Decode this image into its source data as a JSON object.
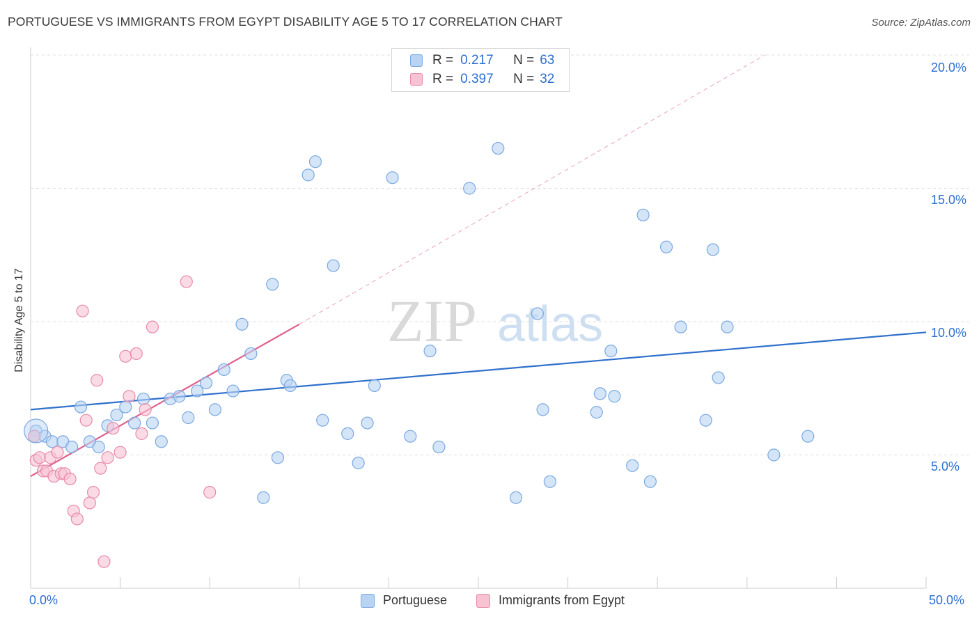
{
  "title": "PORTUGUESE VS IMMIGRANTS FROM EGYPT DISABILITY AGE 5 TO 17 CORRELATION CHART",
  "source": "Source: ZipAtlas.com",
  "watermark": {
    "zip": "ZIP",
    "atlas": "atlas"
  },
  "legend": {
    "r_label": "R =",
    "n_label": "N =",
    "rows": [
      {
        "r": "0.217",
        "n": "63"
      },
      {
        "r": "0.397",
        "n": "32"
      }
    ]
  },
  "bottom_legend": [
    "Portuguese",
    "Immigrants from Egypt"
  ],
  "colors": {
    "blue_fill": "#b9d3f3",
    "blue_stroke": "#7aa8e0",
    "blue_line": "#2f70cc",
    "pink_fill": "#f7c3d3",
    "pink_stroke": "#e88aa8",
    "pink_line": "#e0608e",
    "axis_text": "#2d6fd0",
    "grid": "#dddddd"
  },
  "chart_data": {
    "type": "scatter",
    "xlabel": "",
    "ylabel": "Disability Age 5 to 17",
    "xlim": [
      0,
      50
    ],
    "ylim": [
      0,
      20
    ],
    "x_tick_labels": [
      "0.0%",
      "50.0%"
    ],
    "y_ticks": [
      5,
      10,
      15,
      20
    ],
    "y_tick_labels": [
      "5.0%",
      "10.0%",
      "15.0%",
      "20.0%"
    ],
    "grid": true,
    "series": [
      {
        "name": "Portuguese",
        "r": 0.217,
        "n": 63,
        "points": [
          [
            0.3,
            5.9
          ],
          [
            0.8,
            5.7
          ],
          [
            1.2,
            5.5
          ],
          [
            1.8,
            5.5
          ],
          [
            2.3,
            5.3
          ],
          [
            2.8,
            6.8
          ],
          [
            3.3,
            5.5
          ],
          [
            3.8,
            5.3
          ],
          [
            4.3,
            6.1
          ],
          [
            4.8,
            6.5
          ],
          [
            5.3,
            6.8
          ],
          [
            5.8,
            6.2
          ],
          [
            6.3,
            7.1
          ],
          [
            6.8,
            6.2
          ],
          [
            7.3,
            5.5
          ],
          [
            7.8,
            7.1
          ],
          [
            8.3,
            7.2
          ],
          [
            8.8,
            6.4
          ],
          [
            9.3,
            7.4
          ],
          [
            9.8,
            7.7
          ],
          [
            10.3,
            6.7
          ],
          [
            10.8,
            8.2
          ],
          [
            11.3,
            7.4
          ],
          [
            11.8,
            9.9
          ],
          [
            12.3,
            8.8
          ],
          [
            13.0,
            3.4
          ],
          [
            13.5,
            11.4
          ],
          [
            13.8,
            4.9
          ],
          [
            14.3,
            7.8
          ],
          [
            14.5,
            7.6
          ],
          [
            15.5,
            15.5
          ],
          [
            15.9,
            16.0
          ],
          [
            16.3,
            6.3
          ],
          [
            16.9,
            12.1
          ],
          [
            17.7,
            5.8
          ],
          [
            18.3,
            4.7
          ],
          [
            18.8,
            6.2
          ],
          [
            19.2,
            7.6
          ],
          [
            20.2,
            15.4
          ],
          [
            21.2,
            5.7
          ],
          [
            22.3,
            8.9
          ],
          [
            22.8,
            5.3
          ],
          [
            24.5,
            15.0
          ],
          [
            26.1,
            16.5
          ],
          [
            27.1,
            3.4
          ],
          [
            28.3,
            10.3
          ],
          [
            28.6,
            6.7
          ],
          [
            29.0,
            4.0
          ],
          [
            31.6,
            6.6
          ],
          [
            31.8,
            7.3
          ],
          [
            32.4,
            8.9
          ],
          [
            32.6,
            7.2
          ],
          [
            33.6,
            4.6
          ],
          [
            34.2,
            14.0
          ],
          [
            34.6,
            4.0
          ],
          [
            35.5,
            12.8
          ],
          [
            36.3,
            9.8
          ],
          [
            37.7,
            6.3
          ],
          [
            38.1,
            12.7
          ],
          [
            38.4,
            7.9
          ],
          [
            38.9,
            9.8
          ],
          [
            41.5,
            5.0
          ],
          [
            43.4,
            5.7
          ]
        ],
        "trend": {
          "x": [
            0,
            50
          ],
          "y": [
            6.7,
            9.6
          ]
        }
      },
      {
        "name": "Immigrants from Egypt",
        "r": 0.397,
        "n": 32,
        "points": [
          [
            0.2,
            5.7
          ],
          [
            0.3,
            4.8
          ],
          [
            0.5,
            4.9
          ],
          [
            0.7,
            4.4
          ],
          [
            0.9,
            4.4
          ],
          [
            1.1,
            4.9
          ],
          [
            1.3,
            4.2
          ],
          [
            1.5,
            5.1
          ],
          [
            1.7,
            4.3
          ],
          [
            1.9,
            4.3
          ],
          [
            2.2,
            4.1
          ],
          [
            2.4,
            2.9
          ],
          [
            2.6,
            2.6
          ],
          [
            2.9,
            10.4
          ],
          [
            3.1,
            6.3
          ],
          [
            3.3,
            3.2
          ],
          [
            3.5,
            3.6
          ],
          [
            3.7,
            7.8
          ],
          [
            3.9,
            4.5
          ],
          [
            4.1,
            1.0
          ],
          [
            4.3,
            4.9
          ],
          [
            4.6,
            6.0
          ],
          [
            5.0,
            5.1
          ],
          [
            5.3,
            8.7
          ],
          [
            5.5,
            7.2
          ],
          [
            5.9,
            8.8
          ],
          [
            6.2,
            5.8
          ],
          [
            6.4,
            6.7
          ],
          [
            6.8,
            9.8
          ],
          [
            8.7,
            11.5
          ],
          [
            10.0,
            3.6
          ],
          [
            0.2,
            5.7
          ]
        ],
        "trend": {
          "x": [
            0,
            15
          ],
          "y": [
            4.2,
            9.9
          ]
        },
        "trend_extension": {
          "x": [
            15,
            41
          ],
          "y": [
            9.9,
            20.0
          ]
        }
      }
    ]
  }
}
